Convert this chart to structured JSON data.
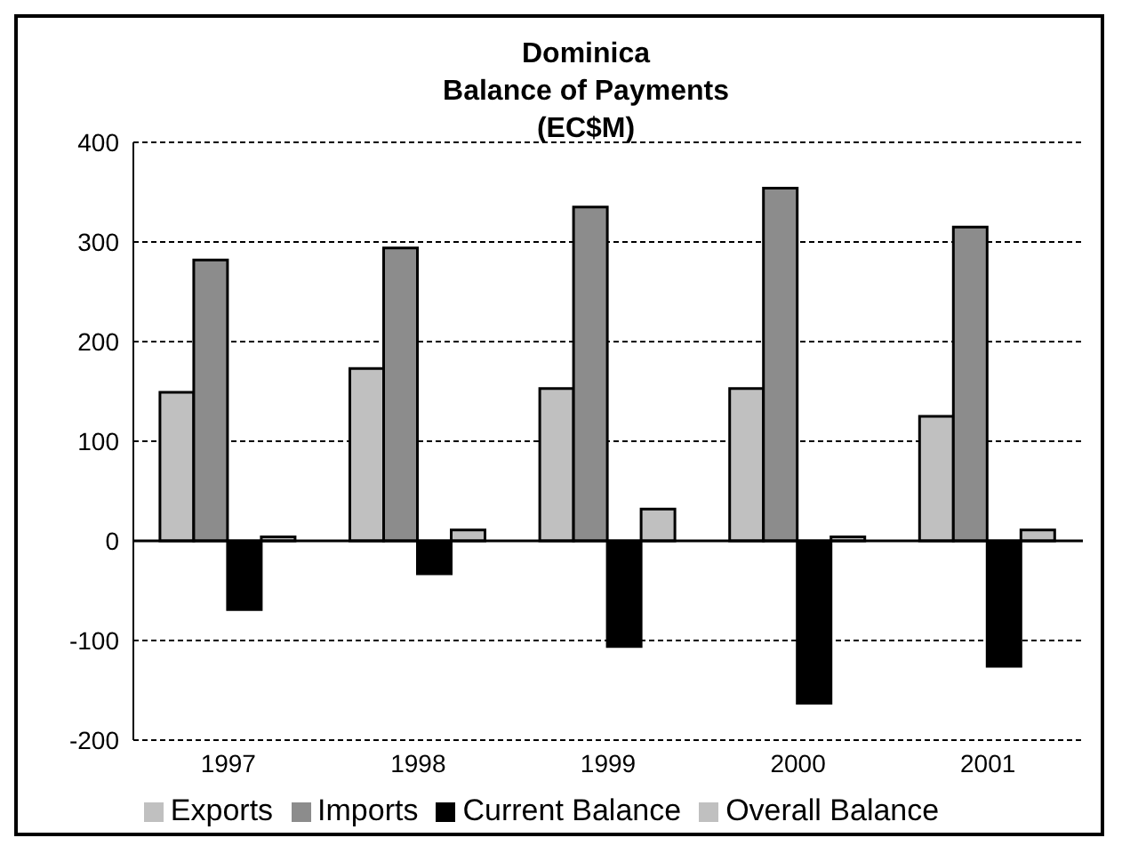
{
  "chart_data": {
    "type": "bar",
    "title": "Dominica\nBalance of Payments\n(EC$M)",
    "categories": [
      "1997",
      "1998",
      "1999",
      "2000",
      "2001"
    ],
    "series": [
      {
        "name": "Exports",
        "color": "#c0c0c0",
        "values": [
          149,
          173,
          153,
          153,
          125
        ]
      },
      {
        "name": "Imports",
        "color": "#8c8c8c",
        "values": [
          282,
          294,
          335,
          354,
          315
        ]
      },
      {
        "name": "Current Balance",
        "color": "#000000",
        "values": [
          -69,
          -33,
          -106,
          -163,
          -126
        ]
      },
      {
        "name": "Overall Balance",
        "color": "#c0c0c0",
        "values": [
          4,
          11,
          32,
          4,
          11
        ]
      }
    ],
    "ylim": [
      -200,
      400
    ],
    "yticks": [
      -200,
      -100,
      0,
      100,
      200,
      300,
      400
    ],
    "grid": "y",
    "legend": "bottom"
  }
}
